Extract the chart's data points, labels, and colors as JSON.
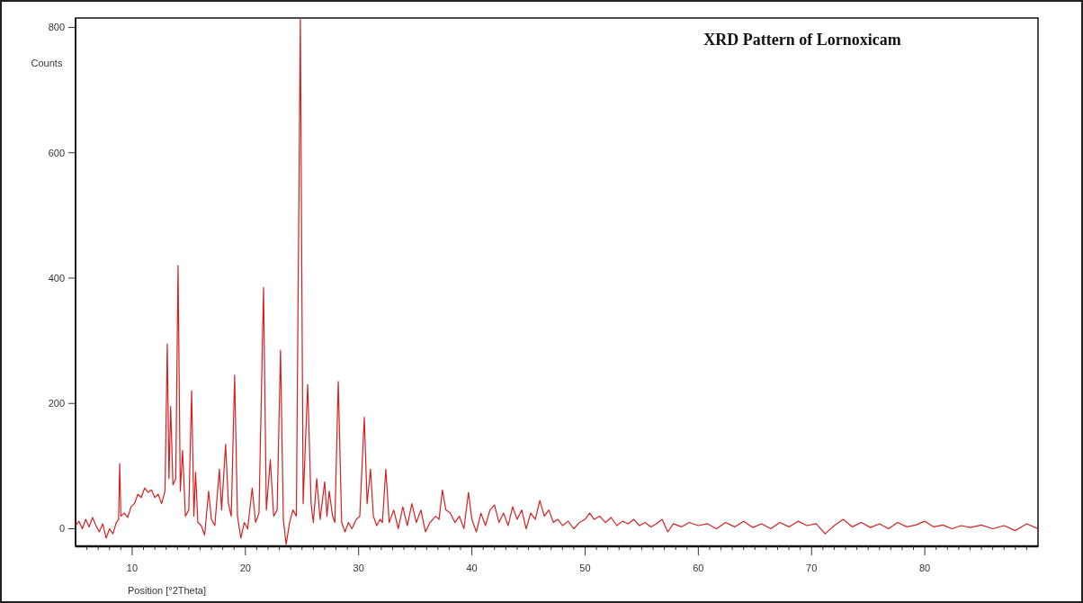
{
  "chart_data": {
    "type": "line",
    "title": "XRD Pattern of Lornoxicam",
    "xlabel": "Position [°2Theta]",
    "ylabel": "Counts",
    "xlim": [
      5,
      90
    ],
    "ylim": [
      -28,
      815
    ],
    "xticks": [
      {
        "value": 6,
        "label": null
      },
      {
        "value": 7,
        "label": null
      },
      {
        "value": 8,
        "label": null
      },
      {
        "value": 9,
        "label": null
      },
      10,
      {
        "value": 11,
        "label": null
      },
      {
        "value": 12,
        "label": null
      },
      {
        "value": 13,
        "label": null
      },
      {
        "value": 14,
        "label": null
      },
      {
        "value": 15,
        "label": null
      },
      {
        "value": 16,
        "label": null
      },
      {
        "value": 17,
        "label": null
      },
      {
        "value": 18,
        "label": null
      },
      {
        "value": 19,
        "label": null
      },
      20,
      {
        "value": 21,
        "label": null
      },
      {
        "value": 22,
        "label": null
      },
      {
        "value": 23,
        "label": null
      },
      {
        "value": 24,
        "label": null
      },
      {
        "value": 25,
        "label": null
      },
      {
        "value": 26,
        "label": null
      },
      {
        "value": 27,
        "label": null
      },
      {
        "value": 28,
        "label": null
      },
      {
        "value": 29,
        "label": null
      },
      30,
      {
        "value": 31,
        "label": null
      },
      {
        "value": 32,
        "label": null
      },
      {
        "value": 33,
        "label": null
      },
      {
        "value": 34,
        "label": null
      },
      {
        "value": 35,
        "label": null
      },
      {
        "value": 36,
        "label": null
      },
      {
        "value": 37,
        "label": null
      },
      {
        "value": 38,
        "label": null
      },
      {
        "value": 39,
        "label": null
      },
      40,
      {
        "value": 41,
        "label": null
      },
      {
        "value": 42,
        "label": null
      },
      {
        "value": 43,
        "label": null
      },
      {
        "value": 44,
        "label": null
      },
      {
        "value": 45,
        "label": null
      },
      {
        "value": 46,
        "label": null
      },
      {
        "value": 47,
        "label": null
      },
      {
        "value": 48,
        "label": null
      },
      {
        "value": 49,
        "label": null
      },
      50,
      {
        "value": 51,
        "label": null
      },
      {
        "value": 52,
        "label": null
      },
      {
        "value": 53,
        "label": null
      },
      {
        "value": 54,
        "label": null
      },
      {
        "value": 55,
        "label": null
      },
      {
        "value": 56,
        "label": null
      },
      {
        "value": 57,
        "label": null
      },
      {
        "value": 58,
        "label": null
      },
      {
        "value": 59,
        "label": null
      },
      60,
      {
        "value": 61,
        "label": null
      },
      {
        "value": 62,
        "label": null
      },
      {
        "value": 63,
        "label": null
      },
      {
        "value": 64,
        "label": null
      },
      {
        "value": 65,
        "label": null
      },
      {
        "value": 66,
        "label": null
      },
      {
        "value": 67,
        "label": null
      },
      {
        "value": 68,
        "label": null
      },
      {
        "value": 69,
        "label": null
      },
      70,
      {
        "value": 71,
        "label": null
      },
      {
        "value": 72,
        "label": null
      },
      {
        "value": 73,
        "label": null
      },
      {
        "value": 74,
        "label": null
      },
      {
        "value": 75,
        "label": null
      },
      {
        "value": 76,
        "label": null
      },
      {
        "value": 77,
        "label": null
      },
      {
        "value": 78,
        "label": null
      },
      {
        "value": 79,
        "label": null
      },
      80,
      {
        "value": 81,
        "label": null
      },
      {
        "value": 82,
        "label": null
      },
      {
        "value": 83,
        "label": null
      },
      {
        "value": 84,
        "label": null
      },
      {
        "value": 85,
        "label": null
      },
      {
        "value": 86,
        "label": null
      },
      {
        "value": 87,
        "label": null
      },
      {
        "value": 88,
        "label": null
      },
      {
        "value": 89,
        "label": null
      }
    ],
    "yticks": [
      0,
      200,
      400,
      600,
      800
    ],
    "x": [
      5.0,
      5.3,
      5.6,
      5.9,
      6.2,
      6.5,
      6.8,
      7.1,
      7.4,
      7.7,
      8.0,
      8.3,
      8.6,
      8.8,
      8.9,
      9.0,
      9.3,
      9.6,
      9.9,
      10.2,
      10.5,
      10.8,
      11.1,
      11.4,
      11.7,
      12.0,
      12.3,
      12.6,
      12.9,
      13.1,
      13.25,
      13.4,
      13.6,
      13.85,
      14.05,
      14.25,
      14.45,
      14.7,
      15.0,
      15.25,
      15.45,
      15.6,
      15.8,
      16.1,
      16.4,
      16.75,
      17.0,
      17.3,
      17.7,
      17.9,
      18.25,
      18.5,
      18.75,
      19.05,
      19.3,
      19.6,
      19.9,
      20.2,
      20.6,
      20.9,
      21.2,
      21.6,
      21.85,
      22.2,
      22.5,
      22.8,
      23.1,
      23.35,
      23.6,
      23.9,
      24.2,
      24.5,
      24.85,
      25.1,
      25.5,
      25.8,
      26.0,
      26.3,
      26.6,
      27.0,
      27.2,
      27.4,
      27.7,
      27.9,
      28.2,
      28.5,
      28.8,
      29.1,
      29.4,
      29.8,
      30.1,
      30.5,
      30.75,
      31.05,
      31.3,
      31.6,
      31.9,
      32.1,
      32.4,
      32.7,
      33.1,
      33.5,
      33.9,
      34.3,
      34.7,
      35.1,
      35.5,
      35.9,
      36.3,
      36.8,
      37.1,
      37.4,
      37.7,
      38.1,
      38.5,
      38.9,
      39.3,
      39.7,
      40.0,
      40.4,
      40.8,
      41.2,
      41.6,
      42.0,
      42.4,
      42.8,
      43.2,
      43.6,
      44.0,
      44.4,
      44.8,
      45.2,
      45.6,
      46.0,
      46.4,
      46.8,
      47.2,
      47.6,
      48.0,
      48.5,
      49.0,
      49.5,
      50.0,
      50.4,
      50.8,
      51.3,
      51.8,
      52.3,
      52.8,
      53.3,
      53.8,
      54.3,
      54.8,
      55.3,
      55.8,
      56.3,
      56.8,
      57.3,
      57.8,
      58.5,
      59.2,
      60.0,
      60.8,
      61.6,
      62.4,
      63.2,
      64.0,
      64.8,
      65.6,
      66.4,
      67.2,
      68.0,
      68.8,
      69.6,
      70.4,
      71.2,
      72.0,
      72.8,
      73.6,
      74.4,
      75.2,
      76.0,
      76.8,
      77.6,
      78.4,
      79.2,
      80.0,
      80.8,
      81.6,
      82.4,
      83.2,
      84.0,
      85.0,
      86.0,
      87.0,
      88.0,
      89.0,
      90.0
    ],
    "series": [
      {
        "color": "#d42020",
        "values": [
          5,
          12,
          0,
          15,
          3,
          18,
          5,
          -5,
          8,
          -15,
          0,
          -8,
          10,
          15,
          104,
          20,
          25,
          18,
          35,
          40,
          55,
          50,
          65,
          58,
          62,
          50,
          55,
          40,
          60,
          295,
          80,
          195,
          70,
          80,
          420,
          60,
          125,
          20,
          30,
          220,
          20,
          90,
          10,
          5,
          -10,
          60,
          15,
          5,
          95,
          30,
          135,
          40,
          20,
          245,
          20,
          -15,
          10,
          0,
          65,
          10,
          25,
          385,
          30,
          110,
          20,
          30,
          285,
          15,
          -25,
          10,
          30,
          20,
          815,
          40,
          230,
          40,
          10,
          80,
          15,
          75,
          20,
          60,
          20,
          10,
          235,
          10,
          -5,
          10,
          0,
          15,
          20,
          178,
          40,
          95,
          20,
          5,
          15,
          10,
          95,
          10,
          30,
          0,
          35,
          5,
          40,
          10,
          30,
          -5,
          10,
          20,
          15,
          62,
          30,
          25,
          10,
          20,
          0,
          58,
          15,
          -5,
          25,
          5,
          30,
          38,
          10,
          25,
          5,
          35,
          15,
          30,
          0,
          25,
          15,
          45,
          20,
          30,
          10,
          15,
          5,
          12,
          0,
          10,
          15,
          25,
          15,
          20,
          10,
          18,
          5,
          12,
          8,
          15,
          5,
          10,
          3,
          8,
          15,
          -5,
          8,
          3,
          10,
          5,
          8,
          0,
          10,
          3,
          12,
          2,
          8,
          0,
          10,
          3,
          12,
          5,
          8,
          -8,
          5,
          15,
          3,
          10,
          2,
          8,
          0,
          10,
          3,
          6,
          12,
          3,
          6,
          0,
          5,
          2,
          6,
          0,
          5,
          -3,
          8,
          0
        ]
      }
    ]
  }
}
